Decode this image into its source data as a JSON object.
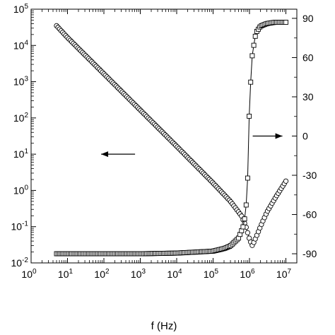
{
  "chart_data": {
    "type": "scatter",
    "title": "",
    "xlabel": "f (Hz)",
    "ylabel_left": "",
    "ylabel_right": "",
    "x_scale": "log",
    "y_left_scale": "log",
    "xlim": [
      1,
      20000000
    ],
    "ylim_left": [
      0.01,
      100000
    ],
    "ylim_right": [
      -97,
      97
    ],
    "grid": false,
    "legend": "none",
    "x_ticks": [
      {
        "label": "10",
        "exp": "0"
      },
      {
        "label": "10",
        "exp": "1"
      },
      {
        "label": "10",
        "exp": "2"
      },
      {
        "label": "10",
        "exp": "3"
      },
      {
        "label": "10",
        "exp": "4"
      },
      {
        "label": "10",
        "exp": "5"
      },
      {
        "label": "10",
        "exp": "6"
      },
      {
        "label": "10",
        "exp": "7"
      }
    ],
    "y_left_ticks": [
      {
        "label": "10",
        "exp": "-2"
      },
      {
        "label": "10",
        "exp": "-1"
      },
      {
        "label": "10",
        "exp": "0"
      },
      {
        "label": "10",
        "exp": "1"
      },
      {
        "label": "10",
        "exp": "2"
      },
      {
        "label": "10",
        "exp": "3"
      },
      {
        "label": "10",
        "exp": "4"
      },
      {
        "label": "10",
        "exp": "5"
      }
    ],
    "y_right_ticks": [
      "-90",
      "-60",
      "-30",
      "0",
      "30",
      "60",
      "90"
    ],
    "series": [
      {
        "axis": "left",
        "marker": "circle",
        "x": [
          5,
          10,
          100,
          1000,
          10000,
          100000,
          300000,
          600000,
          800000,
          1000000,
          1200000,
          1500000,
          2000000,
          3000000,
          5000000,
          10000000
        ],
        "y": [
          35000,
          16500,
          1650,
          165,
          16.5,
          1.6,
          0.5,
          0.2,
          0.1,
          0.045,
          0.03,
          0.05,
          0.1,
          0.25,
          0.6,
          1.8
        ]
      },
      {
        "axis": "right",
        "marker": "square",
        "x": [
          5,
          10,
          100,
          1000,
          10000,
          100000,
          200000,
          300000,
          500000,
          700000,
          800000,
          900000,
          1000000,
          1200000,
          1500000,
          2000000,
          3000000,
          5000000,
          10000000
        ],
        "y": [
          -90,
          -90,
          -90,
          -90,
          -89.5,
          -88,
          -86,
          -84,
          -78,
          -68,
          -55,
          -30,
          25,
          63,
          79,
          84,
          86,
          87,
          87
        ]
      }
    ],
    "annotations": [
      {
        "label": "arrow-left",
        "x": 120,
        "y": 10
      },
      {
        "label": "arrow-right",
        "x": 3000000,
        "y": 0
      }
    ]
  }
}
